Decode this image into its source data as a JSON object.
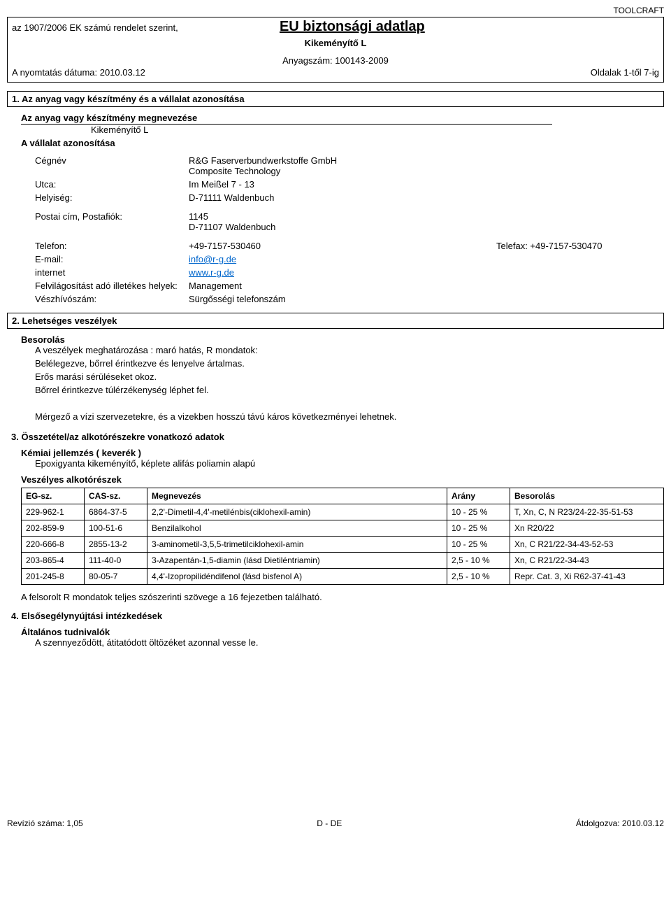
{
  "header": {
    "brand": "TOOLCRAFT",
    "regulation": "az 1907/2006 EK számú rendelet szerint,",
    "title": "EU biztonsági adatlap",
    "product": "Kikeményítő L",
    "material_no": "Anyagszám: 100143-2009",
    "print_date": "A nyomtatás dátuma: 2010.03.12",
    "pages": "Oldalak 1-től 7-ig"
  },
  "section1": {
    "heading": "1. Az anyag vagy készítmény és a vállalat azonosítása",
    "sub1": "Az anyag vagy készítmény megnevezése",
    "product_name": "Kikeményítő L",
    "sub2": "A vállalat azonosítása",
    "rows": [
      {
        "lbl": "Cégnév",
        "val": "R&G Faserverbundwerkstoffe GmbH\nComposite Technology"
      },
      {
        "lbl": "Utca:",
        "val": "Im Meißel 7 - 13"
      },
      {
        "lbl": "Helyiség:",
        "val": "D-71111 Waldenbuch"
      },
      {
        "lbl": "Postai cím, Postafiók:",
        "val": "1145\nD-71107 Waldenbuch"
      },
      {
        "lbl": "Telefon:",
        "val": "+49-7157-530460",
        "extra_lbl": "Telefax:",
        "extra_val": "+49-7157-530470"
      },
      {
        "lbl": "E-mail:",
        "val": "info@r-g.de",
        "link": true
      },
      {
        "lbl": "internet",
        "val": "www.r-g.de",
        "link": true
      },
      {
        "lbl": "Felvilágosítást adó illetékes helyek:",
        "val": "Management"
      },
      {
        "lbl": "Vészhívószám:",
        "val": "Sürgősségi telefonszám"
      }
    ]
  },
  "section2": {
    "heading": "2. Lehetséges veszélyek",
    "sub": "Besorolás",
    "lines": [
      "A veszélyek meghatározása : maró hatás, R mondatok:",
      "Belélegezve, bőrrel érintkezve és lenyelve ártalmas.",
      "Erős marási sérüléseket okoz.",
      "Bőrrel érintkezve túlérzékenység léphet fel.",
      "",
      "Mérgező a vízi szervezetekre, és a vizekben hosszú távú káros következményei lehetnek."
    ]
  },
  "section3": {
    "heading": "3.    Összetétel/az alkotórészekre vonatkozó adatok",
    "sub1": "Kémiai jellemzés ( keverék )",
    "line1": "Epoxigyanta kikeményítő, képlete alifás poliamin alapú",
    "sub2": "Veszélyes alkotórészek",
    "cols": [
      "EG-sz.",
      "CAS-sz.",
      "Megnevezés",
      "Arány",
      "Besorolás"
    ],
    "rows": [
      [
        "229-962-1",
        "6864-37-5",
        "2,2'-Dimetil-4,4'-metilénbis(ciklohexil-amin)",
        "10 - 25 %",
        "T, Xn, C, N R23/24-22-35-51-53"
      ],
      [
        "202-859-9",
        "100-51-6",
        "Benzilalkohol",
        "10 - 25 %",
        "Xn R20/22"
      ],
      [
        "220-666-8",
        "2855-13-2",
        "3-aminometil-3,5,5-trimetilciklohexil-amin",
        "10 - 25 %",
        "Xn, C R21/22-34-43-52-53"
      ],
      [
        "203-865-4",
        "111-40-0",
        "3-Azapentán-1,5-diamin (lásd Dietiléntriamin)",
        "2,5 - 10 %",
        "Xn, C R21/22-34-43"
      ],
      [
        "201-245-8",
        "80-05-7",
        "4,4'-Izopropilidéndifenol (lásd bisfenol A)",
        "2,5 - 10 %",
        "Repr. Cat. 3, Xi R62-37-41-43"
      ]
    ],
    "col_widths": [
      "90px",
      "90px",
      "auto",
      "90px",
      "220px"
    ],
    "footer_note": "A felsorolt R mondatok teljes szószerinti szövege a 16 fejezetben található."
  },
  "section4": {
    "heading": "4.    Elsősegélynyújtási intézkedések",
    "sub": "Általános tudnivalók",
    "line": "A szennyeződött, átitatódott öltözéket azonnal vesse le."
  },
  "footer": {
    "left": "Revízió száma: 1,05",
    "center": "D - DE",
    "right": "Átdolgozva: 2010.03.12"
  }
}
